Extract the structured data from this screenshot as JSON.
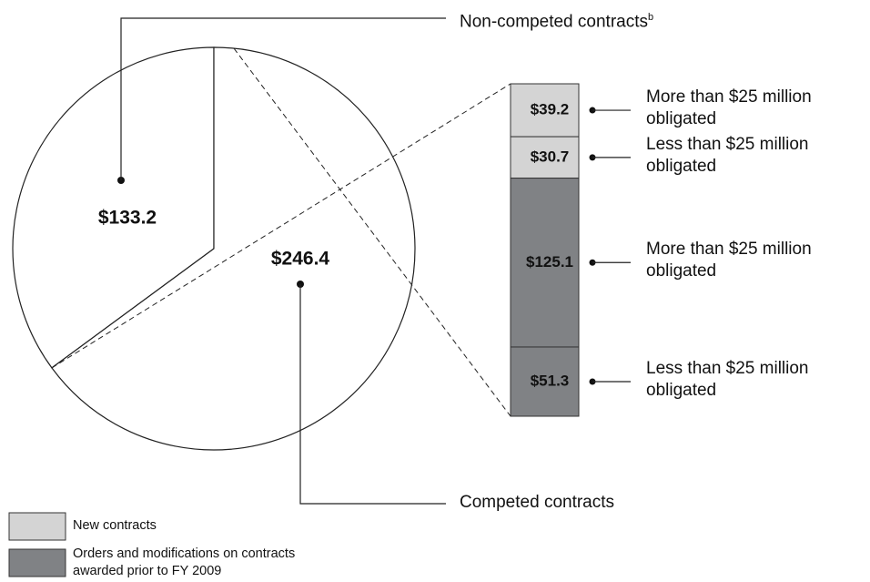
{
  "chart_data": {
    "type": "pie",
    "categories": [
      "Non-competed contracts",
      "Competed contracts"
    ],
    "category_superscripts": [
      "b",
      null
    ],
    "values": [
      133.2,
      246.4
    ],
    "value_labels": [
      "$133.2",
      "$246.4"
    ],
    "colors": [
      "#ffffff",
      "#ffffff"
    ],
    "breakdown_of": 1,
    "groups": [
      {
        "name": "New contracts",
        "color": "#d4d4d4"
      },
      {
        "name": "Orders and modifications on contracts awarded prior to FY 2009",
        "color": "#808285"
      }
    ],
    "segments": [
      {
        "name": "More than $25 million obligated",
        "value": 39.2,
        "value_label": "$39.2",
        "group": 0
      },
      {
        "name": "Less than $25 million obligated",
        "value": 30.7,
        "value_label": "$30.7",
        "group": 0
      },
      {
        "name": "More than $25 million obligated",
        "value": 125.1,
        "value_label": "$125.1",
        "group": 1
      },
      {
        "name": "Less than $25 million obligated",
        "value": 51.3,
        "value_label": "$51.3",
        "group": 1
      }
    ]
  }
}
